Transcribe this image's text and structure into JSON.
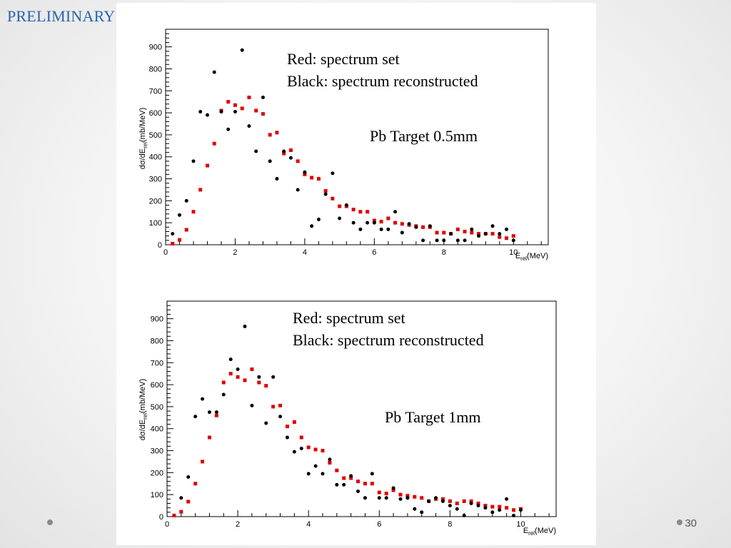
{
  "slide": {
    "title": "PRELIMINARY",
    "page_number": "30"
  },
  "chart_data": [
    {
      "type": "scatter",
      "title": "",
      "xlabel": "E_rel(MeV)",
      "ylabel": "dσ/dE_rel(mb/MeV)",
      "xlim": [
        0,
        11
      ],
      "ylim": [
        0,
        980
      ],
      "xticks": [
        0,
        2,
        4,
        6,
        8,
        10
      ],
      "yticks": [
        0,
        100,
        200,
        300,
        400,
        500,
        600,
        700,
        800,
        900
      ],
      "grid": false,
      "annotations": [
        "Red: spectrum set",
        "Black: spectrum reconstructed",
        "Pb Target 0.5mm"
      ],
      "series": [
        {
          "color": "#e00000",
          "marker": "square",
          "x": [
            0.2,
            0.4,
            0.6,
            0.8,
            1.0,
            1.2,
            1.4,
            1.6,
            1.8,
            2.0,
            2.2,
            2.4,
            2.6,
            2.8,
            3.0,
            3.2,
            3.4,
            3.6,
            3.8,
            4.0,
            4.2,
            4.4,
            4.6,
            4.8,
            5.0,
            5.2,
            5.4,
            5.6,
            5.8,
            6.0,
            6.2,
            6.4,
            6.6,
            6.8,
            7.0,
            7.2,
            7.4,
            7.6,
            7.8,
            8.0,
            8.2,
            8.4,
            8.6,
            8.8,
            9.0,
            9.2,
            9.4,
            9.6,
            9.8,
            10.0
          ],
          "y": [
            5,
            22,
            68,
            150,
            250,
            360,
            460,
            610,
            650,
            635,
            620,
            670,
            610,
            595,
            500,
            510,
            415,
            430,
            380,
            320,
            305,
            300,
            245,
            210,
            175,
            175,
            160,
            150,
            150,
            110,
            105,
            120,
            100,
            95,
            90,
            85,
            80,
            80,
            55,
            55,
            50,
            70,
            60,
            55,
            50,
            50,
            50,
            35,
            30,
            40
          ]
        },
        {
          "color": "#000000",
          "marker": "circle",
          "x": [
            0.2,
            0.4,
            0.6,
            0.8,
            1.0,
            1.2,
            1.4,
            1.6,
            1.8,
            2.0,
            2.2,
            2.4,
            2.6,
            2.8,
            3.0,
            3.2,
            3.4,
            3.6,
            3.8,
            4.0,
            4.2,
            4.4,
            4.6,
            4.8,
            5.0,
            5.2,
            5.4,
            5.6,
            5.8,
            6.0,
            6.2,
            6.4,
            6.6,
            6.8,
            7.0,
            7.2,
            7.4,
            7.6,
            7.8,
            8.0,
            8.2,
            8.4,
            8.6,
            8.8,
            9.0,
            9.2,
            9.4,
            9.6,
            9.8,
            10.0
          ],
          "y": [
            50,
            135,
            200,
            380,
            605,
            590,
            785,
            605,
            525,
            605,
            885,
            540,
            425,
            670,
            380,
            300,
            425,
            395,
            250,
            330,
            85,
            115,
            230,
            325,
            120,
            180,
            100,
            70,
            100,
            100,
            70,
            70,
            150,
            55,
            95,
            80,
            20,
            85,
            20,
            20,
            50,
            20,
            20,
            70,
            40,
            50,
            85,
            50,
            70,
            20
          ]
        }
      ]
    },
    {
      "type": "scatter",
      "title": "",
      "xlabel": "E_rel(MeV)",
      "ylabel": "dσ/dE_rel(mb/MeV)",
      "xlim": [
        0,
        11
      ],
      "ylim": [
        0,
        980
      ],
      "xticks": [
        0,
        2,
        4,
        6,
        8,
        10
      ],
      "yticks": [
        0,
        100,
        200,
        300,
        400,
        500,
        600,
        700,
        800,
        900
      ],
      "grid": false,
      "annotations": [
        "Red: spectrum set",
        "Black: spectrum reconstructed",
        "Pb Target 1mm"
      ],
      "series": [
        {
          "color": "#e00000",
          "marker": "square",
          "x": [
            0.2,
            0.4,
            0.6,
            0.8,
            1.0,
            1.2,
            1.4,
            1.6,
            1.8,
            2.0,
            2.2,
            2.4,
            2.6,
            2.8,
            3.0,
            3.2,
            3.4,
            3.6,
            3.8,
            4.0,
            4.2,
            4.4,
            4.6,
            4.8,
            5.0,
            5.2,
            5.4,
            5.6,
            5.8,
            6.0,
            6.2,
            6.4,
            6.6,
            6.8,
            7.0,
            7.2,
            7.4,
            7.6,
            7.8,
            8.0,
            8.2,
            8.4,
            8.6,
            8.8,
            9.0,
            9.2,
            9.4,
            9.6,
            9.8,
            10.0
          ],
          "y": [
            5,
            22,
            68,
            150,
            250,
            360,
            460,
            610,
            650,
            635,
            620,
            670,
            610,
            595,
            500,
            505,
            410,
            430,
            360,
            315,
            305,
            300,
            245,
            210,
            175,
            175,
            160,
            150,
            150,
            110,
            105,
            120,
            100,
            95,
            90,
            85,
            70,
            80,
            80,
            70,
            60,
            70,
            70,
            60,
            50,
            45,
            45,
            40,
            30,
            35
          ]
        },
        {
          "color": "#000000",
          "marker": "circle",
          "x": [
            0.4,
            0.6,
            0.8,
            1.0,
            1.2,
            1.4,
            1.6,
            1.8,
            2.0,
            2.2,
            2.4,
            2.6,
            2.8,
            3.0,
            3.2,
            3.4,
            3.6,
            3.8,
            4.0,
            4.2,
            4.4,
            4.6,
            4.8,
            5.0,
            5.2,
            5.4,
            5.6,
            5.8,
            6.0,
            6.2,
            6.4,
            6.6,
            6.8,
            7.0,
            7.2,
            7.4,
            7.6,
            7.8,
            8.0,
            8.2,
            8.4,
            8.6,
            8.8,
            9.0,
            9.2,
            9.4,
            9.6,
            9.8,
            10.0
          ],
          "y": [
            85,
            180,
            455,
            535,
            475,
            475,
            555,
            715,
            670,
            865,
            505,
            635,
            425,
            635,
            455,
            360,
            295,
            310,
            195,
            230,
            195,
            260,
            145,
            145,
            185,
            115,
            85,
            195,
            85,
            85,
            130,
            80,
            85,
            35,
            20,
            70,
            85,
            70,
            50,
            35,
            5,
            60,
            50,
            40,
            20,
            30,
            80,
            5,
            30
          ]
        }
      ]
    }
  ]
}
